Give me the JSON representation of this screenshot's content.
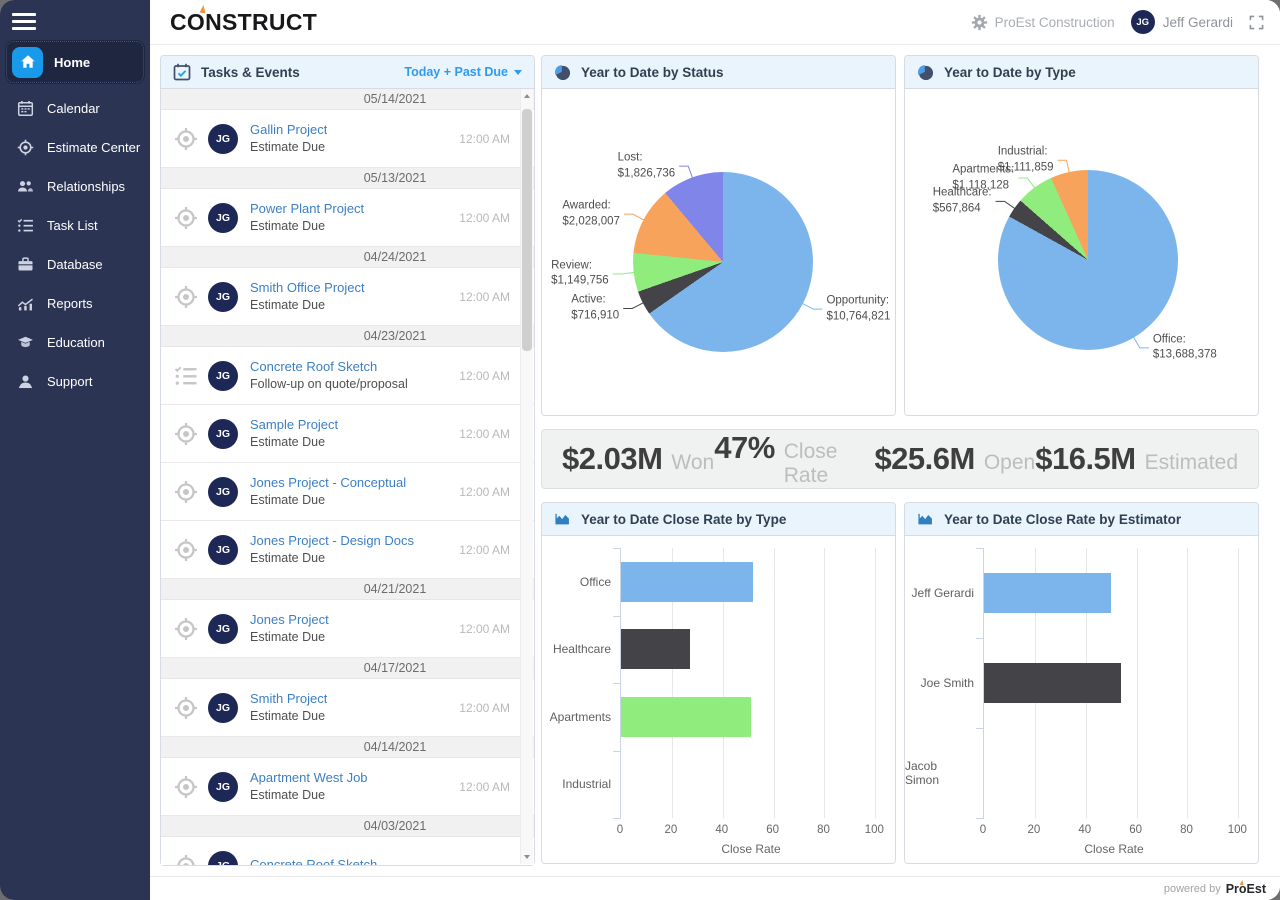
{
  "topbar": {
    "logo": "CONSTRUCT",
    "company": "ProEst Construction",
    "user_name": "Jeff Gerardi",
    "avatar_initials": "JG"
  },
  "sidebar": {
    "items": [
      {
        "label": "Home",
        "icon": "home-icon",
        "active": true
      },
      {
        "label": "Calendar",
        "icon": "calendar-icon",
        "active": false
      },
      {
        "label": "Estimate Center",
        "icon": "target-icon",
        "active": false
      },
      {
        "label": "Relationships",
        "icon": "people-icon",
        "active": false
      },
      {
        "label": "Task List",
        "icon": "checklist-icon",
        "active": false
      },
      {
        "label": "Database",
        "icon": "briefcase-icon",
        "active": false
      },
      {
        "label": "Reports",
        "icon": "chart-icon",
        "active": false
      },
      {
        "label": "Education",
        "icon": "graduation-cap-icon",
        "active": false
      },
      {
        "label": "Support",
        "icon": "support-icon",
        "active": false
      }
    ]
  },
  "tasks_panel": {
    "title": "Tasks & Events",
    "filter": "Today + Past Due",
    "groups": [
      {
        "date": "05/14/2021",
        "items": [
          {
            "icon": "target-icon",
            "avatar": "JG",
            "title": "Gallin Project",
            "subtitle": "Estimate Due",
            "time": "12:00 AM"
          }
        ]
      },
      {
        "date": "05/13/2021",
        "items": [
          {
            "icon": "target-icon",
            "avatar": "JG",
            "title": "Power Plant Project",
            "subtitle": "Estimate Due",
            "time": "12:00 AM"
          }
        ]
      },
      {
        "date": "04/24/2021",
        "items": [
          {
            "icon": "target-icon",
            "avatar": "JG",
            "title": "Smith Office Project",
            "subtitle": "Estimate Due",
            "time": "12:00 AM"
          }
        ]
      },
      {
        "date": "04/23/2021",
        "items": [
          {
            "icon": "checklist-icon",
            "avatar": "JG",
            "title": "Concrete Roof Sketch",
            "subtitle": "Follow-up on quote/proposal",
            "time": "12:00 AM"
          },
          {
            "icon": "target-icon",
            "avatar": "JG",
            "title": "Sample Project",
            "subtitle": "Estimate Due",
            "time": "12:00 AM"
          },
          {
            "icon": "target-icon",
            "avatar": "JG",
            "title": "Jones Project - Conceptual",
            "subtitle": "Estimate Due",
            "time": "12:00 AM"
          },
          {
            "icon": "target-icon",
            "avatar": "JG",
            "title": "Jones Project - Design Docs",
            "subtitle": "Estimate Due",
            "time": "12:00 AM"
          }
        ]
      },
      {
        "date": "04/21/2021",
        "items": [
          {
            "icon": "target-icon",
            "avatar": "JG",
            "title": "Jones Project",
            "subtitle": "Estimate Due",
            "time": "12:00 AM"
          }
        ]
      },
      {
        "date": "04/17/2021",
        "items": [
          {
            "icon": "target-icon",
            "avatar": "JG",
            "title": "Smith Project",
            "subtitle": "Estimate Due",
            "time": "12:00 AM"
          }
        ]
      },
      {
        "date": "04/14/2021",
        "items": [
          {
            "icon": "target-icon",
            "avatar": "JG",
            "title": "Apartment West Job",
            "subtitle": "Estimate Due",
            "time": "12:00 AM"
          }
        ]
      },
      {
        "date": "04/03/2021",
        "items": [
          {
            "icon": "target-icon",
            "avatar": "JG",
            "title": "Concrete Roof Sketch",
            "subtitle": "",
            "time": ""
          }
        ]
      }
    ]
  },
  "stats": [
    {
      "value": "$2.03M",
      "label": "Won"
    },
    {
      "value": "47%",
      "label": "Close Rate"
    },
    {
      "value": "$25.6M",
      "label": "Open"
    },
    {
      "value": "$16.5M",
      "label": "Estimated"
    }
  ],
  "chart_data": [
    {
      "id": "ytd-by-status",
      "type": "pie",
      "title": "Year to Date by Status",
      "slices": [
        {
          "label": "Opportunity",
          "value": 10764821,
          "display": "$10,764,821",
          "color": "#7cb5ec"
        },
        {
          "label": "Active",
          "value": 716910,
          "display": "$716,910",
          "color": "#434348"
        },
        {
          "label": "Review",
          "value": 1149756,
          "display": "$1,149,756",
          "color": "#90ed7d"
        },
        {
          "label": "Awarded",
          "value": 2028007,
          "display": "$2,028,007",
          "color": "#f7a35c"
        },
        {
          "label": "Lost",
          "value": 1826736,
          "display": "$1,826,736",
          "color": "#8085e9"
        }
      ]
    },
    {
      "id": "ytd-by-type",
      "type": "pie",
      "title": "Year to Date by Type",
      "slices": [
        {
          "label": "Office",
          "value": 13688378,
          "display": "$13,688,378",
          "color": "#7cb5ec"
        },
        {
          "label": "Healthcare",
          "value": 567864,
          "display": "$567,864",
          "color": "#434348"
        },
        {
          "label": "Apartments",
          "value": 1118128,
          "display": "$1,118,128",
          "color": "#90ed7d"
        },
        {
          "label": "Industrial",
          "value": 1111859,
          "display": "$1,111,859",
          "color": "#f7a35c"
        }
      ]
    },
    {
      "id": "ytd-close-rate-by-type",
      "type": "bar",
      "title": "Year to Date Close Rate by Type",
      "categories": [
        "Office",
        "Healthcare",
        "Apartments",
        "Industrial"
      ],
      "values": [
        52,
        27,
        51,
        0
      ],
      "colors": [
        "#7cb5ec",
        "#434348",
        "#90ed7d",
        "#7cb5ec"
      ],
      "xlabel": "Close Rate",
      "xticks": [
        0,
        20,
        40,
        60,
        80,
        100
      ],
      "xlim": [
        0,
        103
      ],
      "grid": true,
      "legend": "none"
    },
    {
      "id": "ytd-close-rate-by-estimator",
      "type": "bar",
      "title": "Year to Date Close Rate by Estimator",
      "categories": [
        "Jeff Gerardi",
        "Joe Smith",
        "Jacob Simon"
      ],
      "values": [
        50,
        54,
        0
      ],
      "colors": [
        "#7cb5ec",
        "#434348",
        "#7cb5ec"
      ],
      "xlabel": "Close Rate",
      "xticks": [
        0,
        20,
        40,
        60,
        80,
        100
      ],
      "xlim": [
        0,
        103
      ],
      "grid": true,
      "legend": "none"
    }
  ],
  "footer": {
    "powered_by": "powered by",
    "brand": "ProEst"
  }
}
